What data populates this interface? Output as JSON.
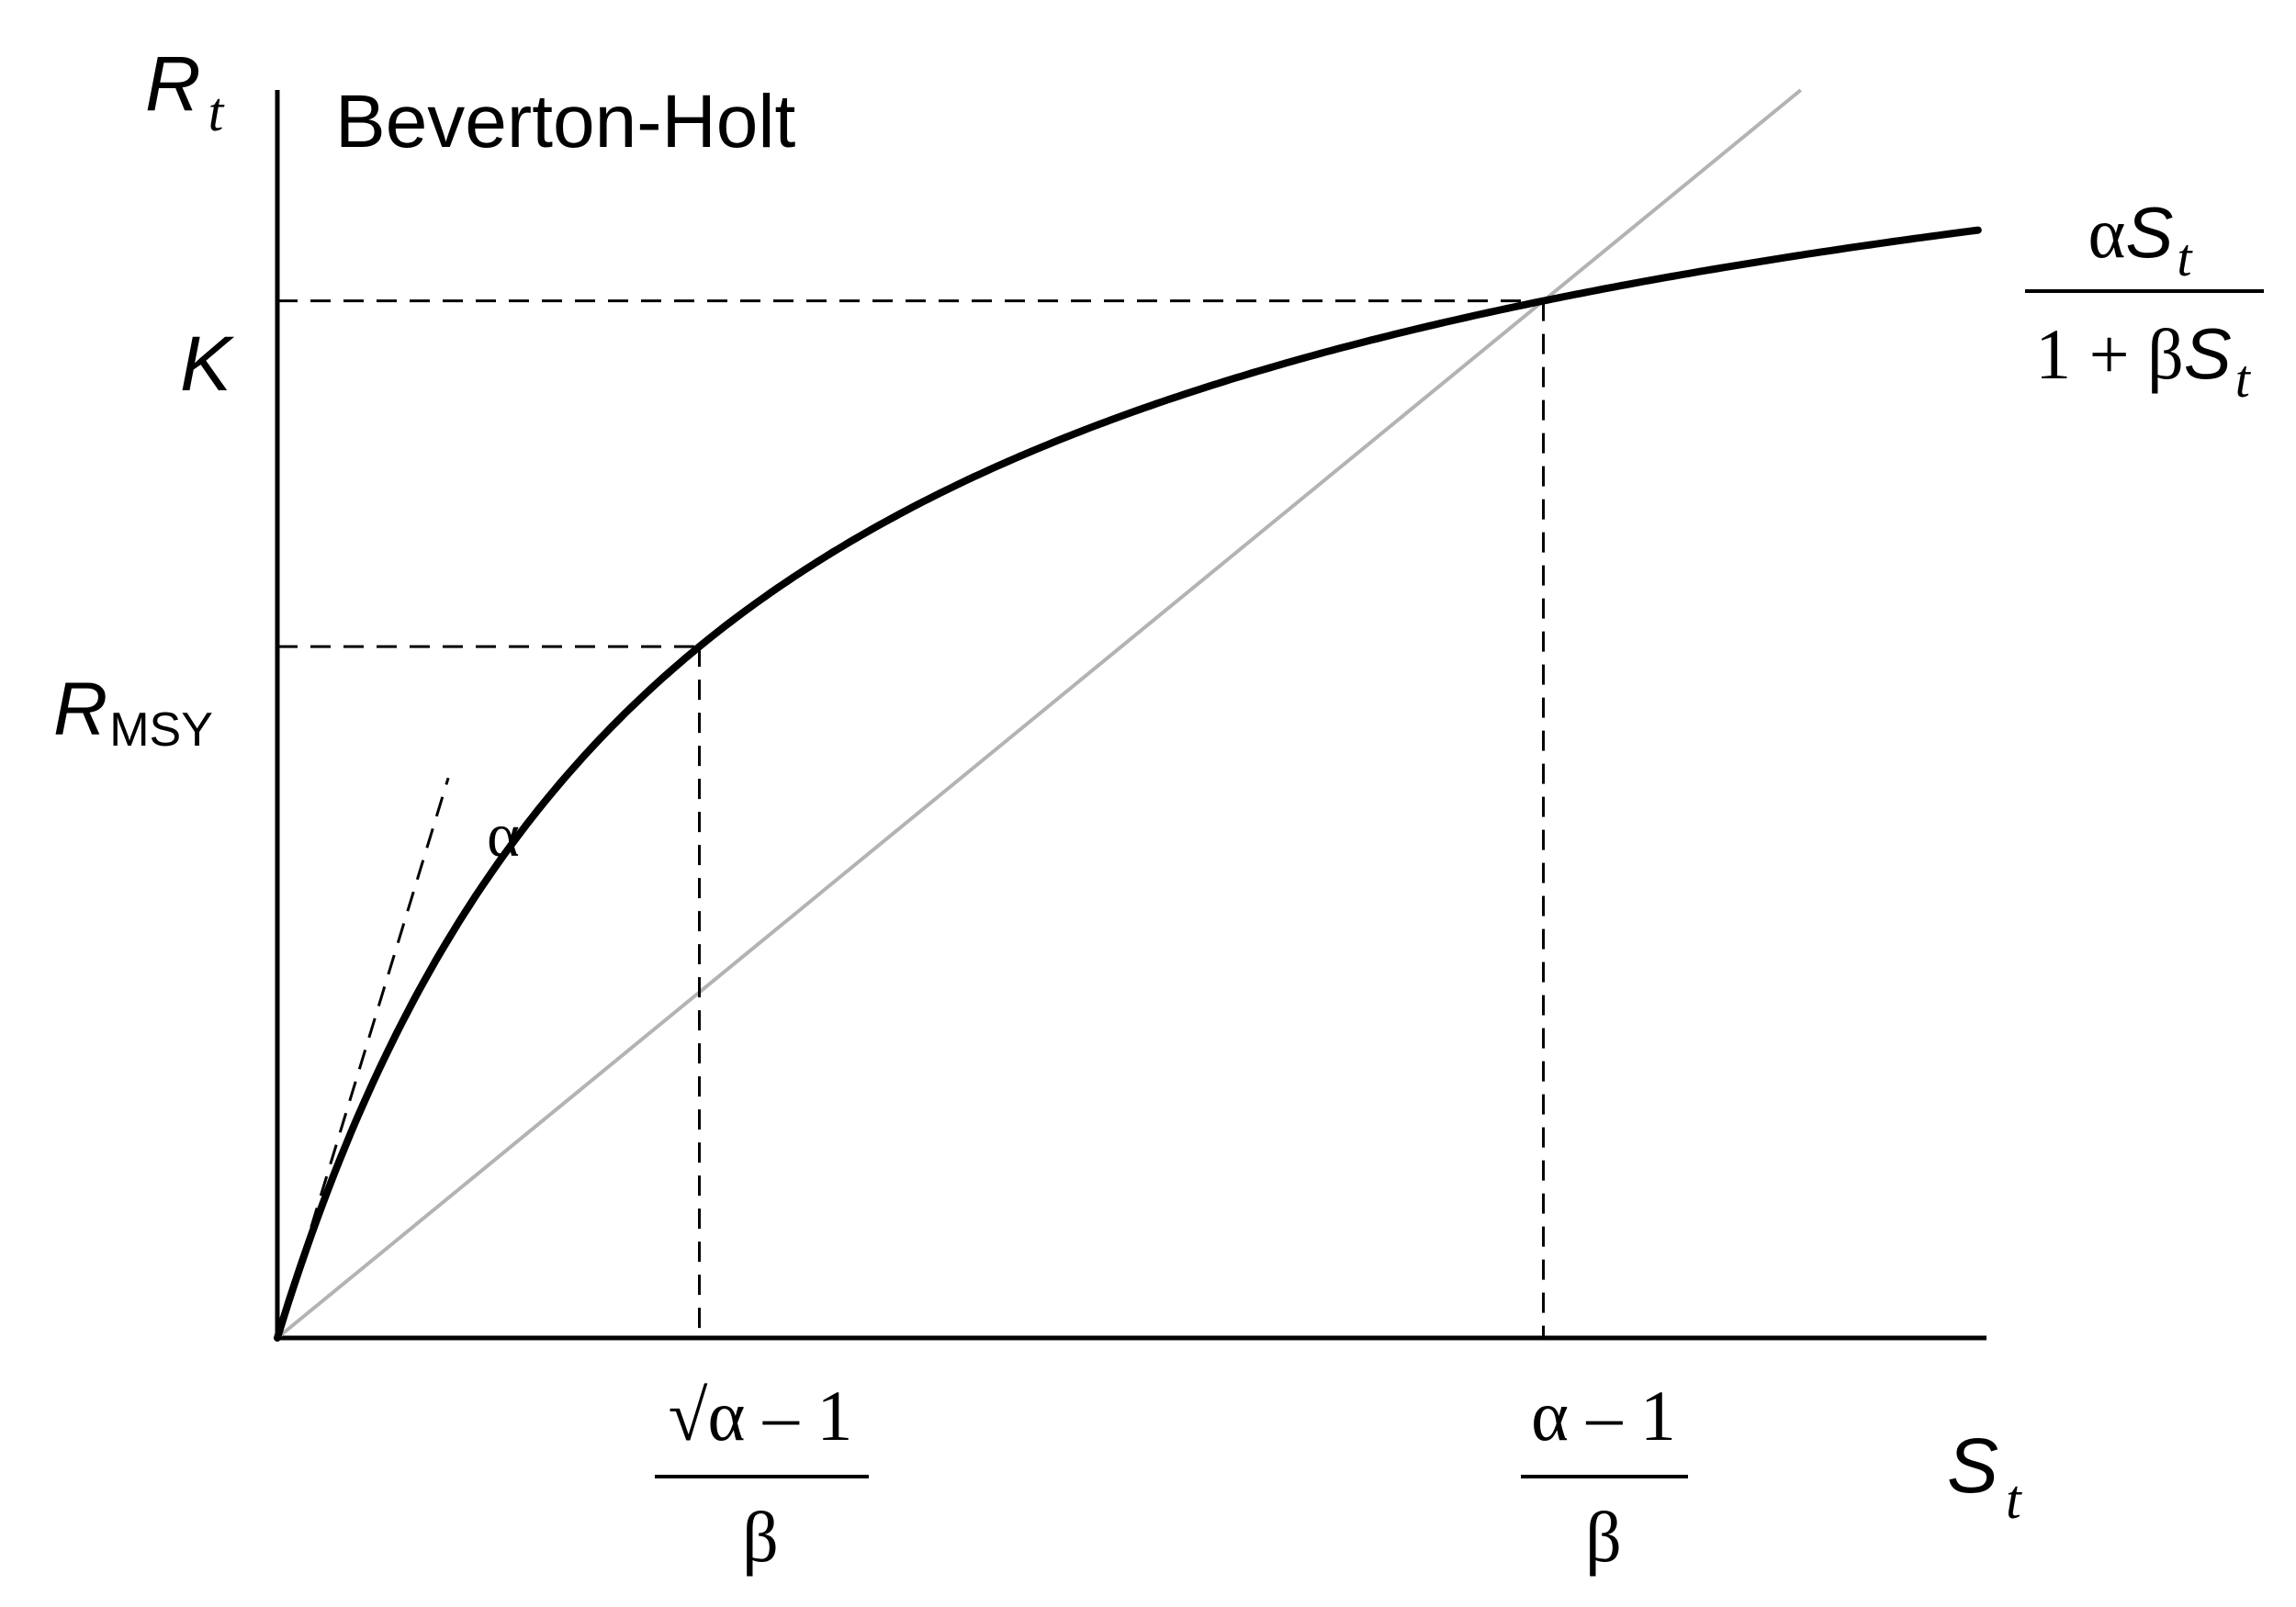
{
  "chart_data": {
    "type": "line",
    "title": "Beverton-Holt",
    "xlabel": {
      "main": "S",
      "sub": "t"
    },
    "ylabel": {
      "main": "R",
      "sub": "t"
    },
    "x_ticks": [
      {
        "numerator": "√α – 1",
        "denominator": "β"
      },
      {
        "numerator": "α – 1",
        "denominator": "β"
      }
    ],
    "y_ticks": [
      {
        "main": "R",
        "sub": "MSY"
      },
      {
        "main": "K",
        "sub": ""
      }
    ],
    "formula": {
      "numerator_symbol": "α",
      "numerator_var": "S",
      "numerator_sub": "t",
      "denominator_prefix": "1 + β",
      "denominator_var": "S",
      "denominator_sub": "t"
    },
    "slope_label": "α",
    "params": {
      "alpha": 4.0,
      "beta": 1.0
    },
    "xlim": [
      0,
      4.05
    ],
    "ylim": [
      0,
      3.61
    ],
    "series": [
      {
        "values_fn": "alpha*S/(1+beta*S)",
        "style": "bold-black"
      },
      {
        "values_fn": "S",
        "style": "thin-gray"
      }
    ],
    "reference_points": {
      "msy": {
        "x": 1.0,
        "y": 2.0
      },
      "equilibrium": {
        "x": 3.0,
        "y": 3.0
      }
    },
    "grid": false,
    "legend": "none"
  }
}
